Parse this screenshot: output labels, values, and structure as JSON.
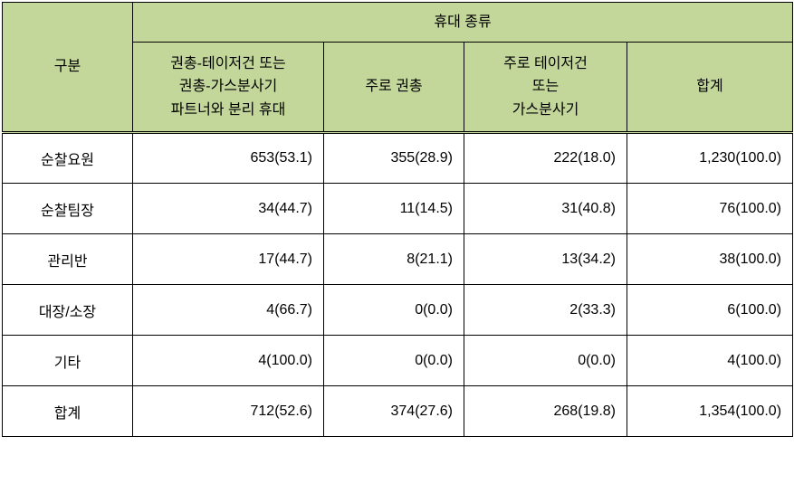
{
  "table": {
    "corner_label": "구분",
    "group_header": "휴대 종류",
    "columns": [
      "권총-테이저건 또는\n권총-가스분사기\n파트너와 분리 휴대",
      "주로 권총",
      "주로 테이저건\n또는\n가스분사기",
      "합계"
    ],
    "rows": [
      {
        "label": "순찰요원",
        "cells": [
          "653(53.1)",
          "355(28.9)",
          "222(18.0)",
          "1,230(100.0)"
        ]
      },
      {
        "label": "순찰팀장",
        "cells": [
          "34(44.7)",
          "11(14.5)",
          "31(40.8)",
          "76(100.0)"
        ]
      },
      {
        "label": "관리반",
        "cells": [
          "17(44.7)",
          "8(21.1)",
          "13(34.2)",
          "38(100.0)"
        ]
      },
      {
        "label": "대장/소장",
        "cells": [
          "4(66.7)",
          "0(0.0)",
          "2(33.3)",
          "6(100.0)"
        ]
      },
      {
        "label": "기타",
        "cells": [
          "4(100.0)",
          "0(0.0)",
          "0(0.0)",
          "4(100.0)"
        ]
      }
    ],
    "total_row": {
      "label": "합계",
      "cells": [
        "712(52.6)",
        "374(27.6)",
        "268(19.8)",
        "1,354(100.0)"
      ]
    },
    "styling": {
      "header_bg": "#c4d79b",
      "border_color": "#000000",
      "font_size": 16,
      "cell_bg": "#ffffff"
    }
  }
}
